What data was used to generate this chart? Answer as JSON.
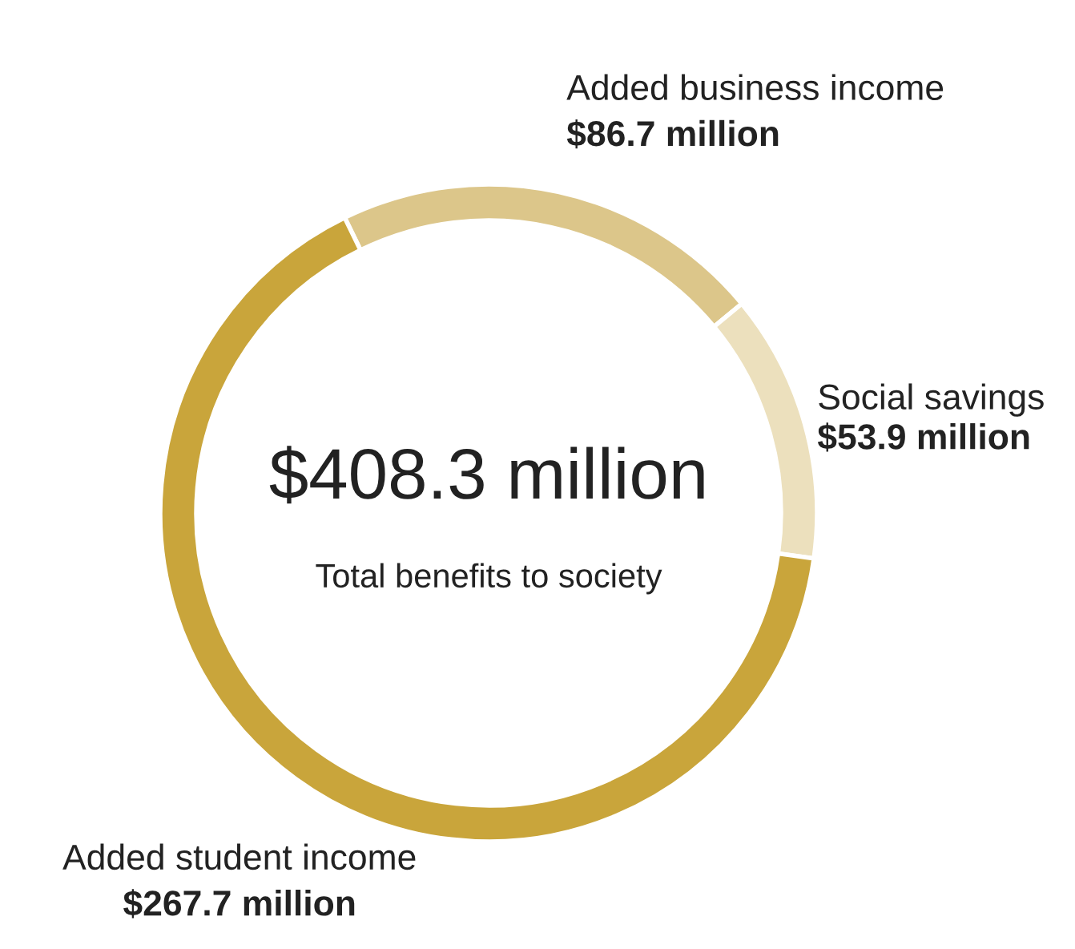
{
  "chart_data": {
    "type": "donut",
    "categories": [
      "Added business income",
      "Social savings",
      "Added student income"
    ],
    "values": [
      86.7,
      53.9,
      267.7
    ],
    "value_labels": [
      "$86.7 million",
      "$53.9 million",
      "$267.7 million"
    ],
    "colors": [
      "#dcc68a",
      "#ece0bd",
      "#c9a53b"
    ],
    "annotations": [
      "$408.3 million",
      "Total benefits to society"
    ]
  }
}
